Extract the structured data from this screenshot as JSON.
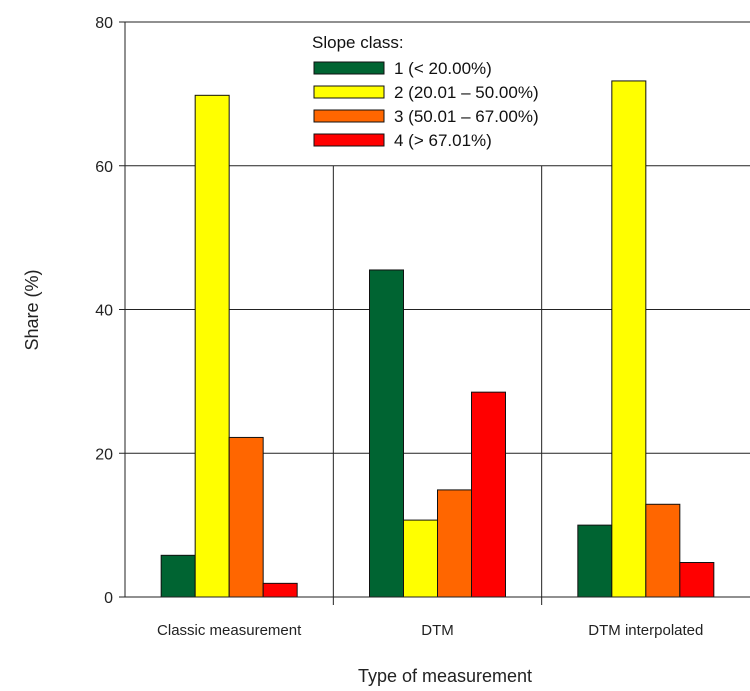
{
  "chart_data": {
    "type": "bar",
    "title": "",
    "xlabel": "Type of measurement",
    "ylabel": "Share (%)",
    "ylim": [
      0,
      80
    ],
    "yticks": [
      0,
      20,
      40,
      60,
      80
    ],
    "grid": true,
    "legend_position": "top-center",
    "legend_title": "Slope class:",
    "categories": [
      "Classic measurement",
      "DTM",
      "DTM interpolated"
    ],
    "series": [
      {
        "name": "1 (< 20.00%)",
        "color": "#006432",
        "values": [
          5.8,
          45.5,
          10.0
        ]
      },
      {
        "name": "2 (20.01 – 50.00%)",
        "color": "#ffff00",
        "values": [
          69.8,
          10.7,
          71.8
        ]
      },
      {
        "name": "3 (50.01 – 67.00%)",
        "color": "#ff6600",
        "values": [
          22.2,
          14.9,
          12.9
        ]
      },
      {
        "name": "4 (> 67.01%)",
        "color": "#ff0000",
        "values": [
          1.9,
          28.5,
          4.8
        ]
      }
    ]
  }
}
